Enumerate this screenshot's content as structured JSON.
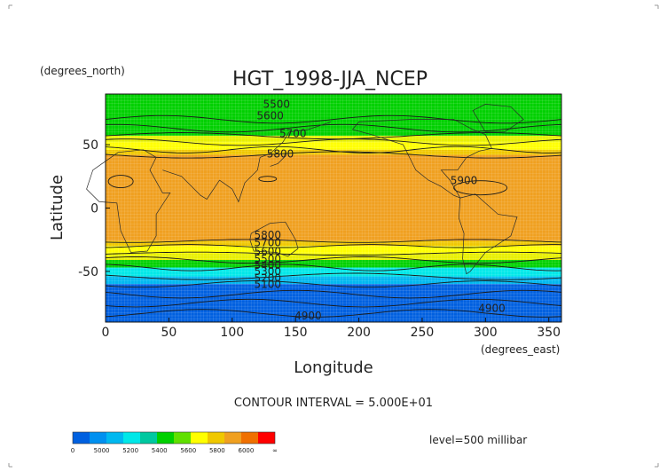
{
  "chart_data": {
    "type": "heatmap",
    "title": "HGT_1998-JJA_NCEP",
    "xlabel": "Longitude",
    "ylabel": "Latitude",
    "x_units": "(degrees_east)",
    "y_units": "(degrees_north)",
    "xlim": [
      0,
      360
    ],
    "ylim": [
      -90,
      90
    ],
    "x_ticks": [
      0,
      50,
      100,
      150,
      200,
      250,
      300,
      350
    ],
    "y_ticks": [
      50,
      0,
      -50
    ],
    "bands": [
      {
        "lat_top": 90,
        "lat_bottom": 57,
        "color": "#00d000",
        "label": "5500"
      },
      {
        "lat_top": 57,
        "lat_bottom": 52,
        "color": "#e8f000",
        "label": "5600"
      },
      {
        "lat_top": 52,
        "lat_bottom": 46,
        "color": "#ffff00",
        "label": "5700"
      },
      {
        "lat_top": 46,
        "lat_bottom": 42,
        "color": "#f0c800",
        "label": "5800"
      },
      {
        "lat_top": 42,
        "lat_bottom": -26,
        "color": "#f0a020",
        "label": "5900"
      },
      {
        "lat_top": -26,
        "lat_bottom": -30,
        "color": "#f0c800",
        "label": "5800"
      },
      {
        "lat_top": -30,
        "lat_bottom": -36,
        "color": "#ffff00",
        "label": "5700"
      },
      {
        "lat_top": -36,
        "lat_bottom": -41,
        "color": "#e8f000",
        "label": "5600"
      },
      {
        "lat_top": -41,
        "lat_bottom": -47,
        "color": "#00d000",
        "label": "5500"
      },
      {
        "lat_top": -47,
        "lat_bottom": -54,
        "color": "#00e8e8",
        "label": "5400"
      },
      {
        "lat_top": -54,
        "lat_bottom": -60,
        "color": "#00b8f0",
        "label": "5300"
      },
      {
        "lat_top": -60,
        "lat_bottom": -90,
        "color": "#0060e0",
        "label": "4900"
      }
    ],
    "contour_labels": [
      {
        "text": "5500",
        "lon": 135,
        "lat": 79
      },
      {
        "text": "5600",
        "lon": 130,
        "lat": 70
      },
      {
        "text": "5700",
        "lon": 148,
        "lat": 56
      },
      {
        "text": "5800",
        "lon": 138,
        "lat": 40
      },
      {
        "text": "5900",
        "lon": 283,
        "lat": 19
      },
      {
        "text": "5800",
        "lon": 128,
        "lat": -24
      },
      {
        "text": "5700",
        "lon": 128,
        "lat": -30
      },
      {
        "text": "5600",
        "lon": 128,
        "lat": -37
      },
      {
        "text": "5500",
        "lon": 128,
        "lat": -43
      },
      {
        "text": "5400",
        "lon": 128,
        "lat": -48
      },
      {
        "text": "5300",
        "lon": 128,
        "lat": -53
      },
      {
        "text": "5200",
        "lon": 128,
        "lat": -58
      },
      {
        "text": "5100",
        "lon": 128,
        "lat": -63
      },
      {
        "text": "4900",
        "lon": 305,
        "lat": -82
      },
      {
        "text": "4900",
        "lon": 160,
        "lat": -88
      }
    ],
    "grid": false,
    "contour_interval_text": "CONTOUR INTERVAL = 5.000E+01",
    "level_text": "level=500 millibar",
    "colorbar": {
      "colors": [
        "#0060e0",
        "#0090f0",
        "#00b8f0",
        "#00e8e8",
        "#00c8a0",
        "#00d000",
        "#60e000",
        "#ffff00",
        "#f0c800",
        "#f0a020",
        "#f07000",
        "#ff0000"
      ],
      "labels": [
        "0",
        "5000",
        "5200",
        "5400",
        "5600",
        "5800",
        "6000",
        "∞"
      ]
    }
  }
}
